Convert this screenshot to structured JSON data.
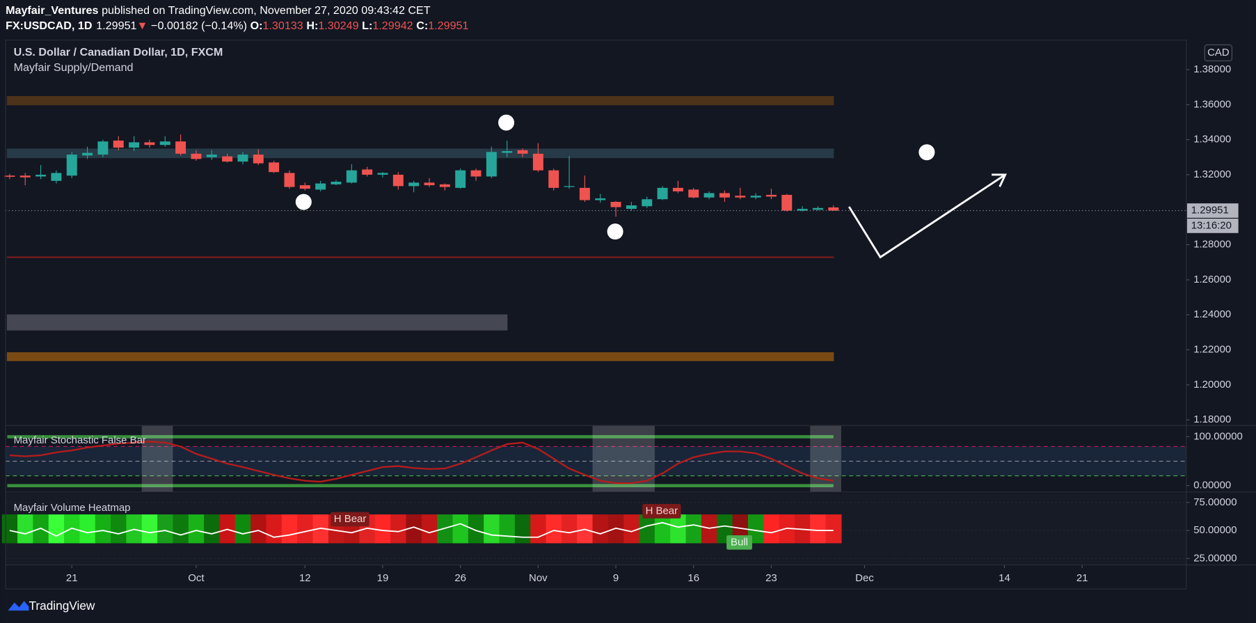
{
  "header": {
    "author": "Mayfair_Ventures",
    "published": "published on TradingView.com, November 27, 2020 09:43:42 CET",
    "symbol": "FX:USDCAD, 1D",
    "last": "1.29951",
    "arrow": "▼",
    "change": "−0.00182 (−0.14%)",
    "ohlc": [
      {
        "label": "O:",
        "value": "1.30133"
      },
      {
        "label": "H:",
        "value": "1.30249"
      },
      {
        "label": "L:",
        "value": "1.29942"
      },
      {
        "label": "C:",
        "value": "1.29951"
      }
    ]
  },
  "footer": {
    "brand": "TradingView"
  },
  "chart_data": [
    {
      "type": "candlestick",
      "title": "U.S. Dollar / Canadian Dollar, 1D, FXCM",
      "subtitle": "Mayfair Supply/Demand",
      "currency": "CAD",
      "open": [
        1.3195,
        1.3195,
        1.319,
        1.3165,
        1.3195,
        1.331,
        1.3315,
        1.3395,
        1.3355,
        1.3385,
        1.337,
        1.339,
        1.332,
        1.33,
        1.3305,
        1.3275,
        1.3315,
        1.327,
        1.321,
        1.314,
        1.3115,
        1.3145,
        1.3155,
        1.323,
        1.32,
        1.32,
        1.3135,
        1.3155,
        1.3145,
        1.3125,
        1.3225,
        1.319,
        1.3325,
        1.334,
        1.332,
        1.3225,
        1.313,
        1.3125,
        1.3055,
        1.3045,
        1.3005,
        1.302,
        1.306,
        1.3125,
        1.3115,
        1.307,
        1.3095,
        1.308,
        1.307,
        1.3085,
        1.3085,
        1.2995,
        1.3,
        1.30133
      ],
      "high": [
        1.3205,
        1.321,
        1.3255,
        1.3225,
        1.333,
        1.336,
        1.34,
        1.342,
        1.342,
        1.34,
        1.342,
        1.343,
        1.334,
        1.334,
        1.332,
        1.333,
        1.3345,
        1.328,
        1.3225,
        1.3155,
        1.3165,
        1.317,
        1.326,
        1.3245,
        1.3215,
        1.3215,
        1.3165,
        1.318,
        1.315,
        1.3235,
        1.3235,
        1.336,
        1.3395,
        1.335,
        1.338,
        1.3235,
        1.3305,
        1.3195,
        1.309,
        1.305,
        1.3045,
        1.3075,
        1.3135,
        1.3165,
        1.3125,
        1.3105,
        1.311,
        1.3125,
        1.3095,
        1.312,
        1.309,
        1.302,
        1.302,
        1.30249
      ],
      "low": [
        1.3175,
        1.314,
        1.3175,
        1.315,
        1.318,
        1.329,
        1.33,
        1.334,
        1.3335,
        1.3355,
        1.336,
        1.331,
        1.328,
        1.3285,
        1.327,
        1.326,
        1.3255,
        1.321,
        1.312,
        1.311,
        1.3105,
        1.314,
        1.315,
        1.319,
        1.3185,
        1.3115,
        1.31,
        1.313,
        1.311,
        1.312,
        1.3165,
        1.318,
        1.33,
        1.33,
        1.3215,
        1.311,
        1.312,
        1.3045,
        1.304,
        1.296,
        1.2995,
        1.301,
        1.3055,
        1.3095,
        1.3065,
        1.306,
        1.3045,
        1.306,
        1.306,
        1.306,
        1.299,
        1.299,
        1.2995,
        1.29942
      ],
      "close": [
        1.3188,
        1.3185,
        1.32,
        1.321,
        1.3315,
        1.3325,
        1.339,
        1.3355,
        1.3385,
        1.337,
        1.339,
        1.332,
        1.329,
        1.3315,
        1.3275,
        1.3315,
        1.3265,
        1.3215,
        1.313,
        1.312,
        1.315,
        1.316,
        1.3225,
        1.32,
        1.321,
        1.3135,
        1.3155,
        1.314,
        1.313,
        1.3225,
        1.319,
        1.333,
        1.3335,
        1.332,
        1.3225,
        1.3125,
        1.3135,
        1.3055,
        1.3065,
        1.3015,
        1.3025,
        1.306,
        1.3125,
        1.3105,
        1.307,
        1.3095,
        1.307,
        1.307,
        1.308,
        1.3075,
        1.2995,
        1.3005,
        1.301,
        1.29951
      ],
      "up_color": "#26a69a",
      "down_color": "#ef5350",
      "xlim": [
        -0.26,
        75.7
      ],
      "xticks": [
        {
          "value": 4,
          "label": "21"
        },
        {
          "value": 12,
          "label": "Oct"
        },
        {
          "value": 19,
          "label": "12"
        },
        {
          "value": 24,
          "label": "19"
        },
        {
          "value": 29,
          "label": "26"
        },
        {
          "value": 34,
          "label": "Nov"
        },
        {
          "value": 39,
          "label": "9"
        },
        {
          "value": 44,
          "label": "16"
        },
        {
          "value": 49,
          "label": "23"
        },
        {
          "value": 55,
          "label": "Dec"
        },
        {
          "value": 64,
          "label": "14"
        },
        {
          "value": 69,
          "label": "21"
        }
      ],
      "ylim": [
        1.1768,
        1.3969
      ],
      "yticks": [
        {
          "value": 1.38,
          "label": "1.38000"
        },
        {
          "value": 1.36,
          "label": "1.36000"
        },
        {
          "value": 1.34,
          "label": "1.34000"
        },
        {
          "value": 1.32,
          "label": "1.32000"
        },
        {
          "value": 1.3,
          "label": "1.30000"
        },
        {
          "value": 1.28,
          "label": "1.28000"
        },
        {
          "value": 1.26,
          "label": "1.26000"
        },
        {
          "value": 1.24,
          "label": "1.24000"
        },
        {
          "value": 1.22,
          "label": "1.22000"
        },
        {
          "value": 1.2,
          "label": "1.20000"
        },
        {
          "value": 1.18,
          "label": "1.18000"
        }
      ],
      "last_price": 1.29951,
      "countdown": "13:16:20",
      "zones": [
        {
          "low": 1.3599,
          "high": 1.3647,
          "from": 0,
          "to": 53,
          "color": "#4d3319"
        },
        {
          "low": 1.3297,
          "high": 1.3347,
          "from": 0,
          "to": 53,
          "color": "#263a47"
        },
        {
          "low": 1.2729,
          "high": 1.2731,
          "from": 0,
          "to": 53,
          "color": "#7a1c1c"
        },
        {
          "low": 1.2313,
          "high": 1.24,
          "from": 0,
          "to": 32,
          "color": "#454852"
        },
        {
          "low": 1.2138,
          "high": 1.2184,
          "from": 0,
          "to": 53,
          "color": "#7a4a14"
        }
      ]
    },
    {
      "type": "line",
      "title": "Mayfair Stochastic False Bar",
      "series": [
        {
          "color": "#b71c1c",
          "values": [
            62,
            60,
            62,
            68,
            72,
            78,
            82,
            86,
            88,
            90,
            88,
            80,
            65,
            55,
            45,
            38,
            30,
            22,
            15,
            10,
            8,
            14,
            22,
            30,
            38,
            40,
            36,
            34,
            35,
            45,
            58,
            72,
            85,
            88,
            75,
            55,
            35,
            22,
            10,
            5,
            5,
            10,
            25,
            45,
            58,
            65,
            70,
            70,
            66,
            55,
            40,
            25,
            15,
            10
          ]
        }
      ],
      "ylim": [
        -13,
        123
      ],
      "yticks": [
        {
          "value": 100,
          "label": "100.00000"
        },
        {
          "value": 0,
          "label": "0.00000"
        }
      ],
      "levels": [
        {
          "value": 80,
          "color": "#c2185b"
        },
        {
          "value": 50,
          "color": "#8a8e99"
        },
        {
          "value": 20,
          "color": "#4caf50"
        }
      ],
      "false_bars": [
        [
          9,
          10
        ],
        [
          38,
          41
        ],
        [
          52,
          53
        ]
      ]
    },
    {
      "type": "heatmap",
      "title": "Mayfair Volume Heatmap",
      "series": [
        {
          "color": "#ffffff",
          "values": [
            50,
            47,
            52,
            45,
            52,
            48,
            50,
            47,
            51,
            48,
            50,
            46,
            50,
            47,
            51,
            47,
            50,
            44,
            46,
            49,
            52,
            50,
            48,
            52,
            50,
            49,
            53,
            48,
            52,
            56,
            50,
            46,
            45,
            44,
            44,
            50,
            48,
            51,
            47,
            52,
            49,
            54,
            57,
            53,
            55,
            52,
            54,
            52,
            50,
            48,
            52,
            51,
            50,
            50
          ]
        }
      ],
      "column_colors": [
        "#0b6b0b",
        "#2ee02e",
        "#13a313",
        "#39ff39",
        "#1fd31f",
        "#2bf02b",
        "#16b016",
        "#0f8a0f",
        "#22c722",
        "#37f737",
        "#1a9e1a",
        "#0e7a0e",
        "#19b319",
        "#0c6c0c",
        "#c81414",
        "#0e8a0e",
        "#b01212",
        "#d91a1a",
        "#ff2a2a",
        "#e52020",
        "#ff3030",
        "#c41818",
        "#b81515",
        "#e02424",
        "#ff2626",
        "#d41c1c",
        "#9a1010",
        "#c01616",
        "#138f13",
        "#1fc41f",
        "#0d7d0d",
        "#2ad92a",
        "#17a817",
        "#0b6a0b",
        "#d61a1a",
        "#ff2c2c",
        "#e52222",
        "#ff3535",
        "#b41414",
        "#a21212",
        "#c81818",
        "#0f800f",
        "#1cc01c",
        "#2ee32e",
        "#17a317",
        "#b51515",
        "#0c720c",
        "#8f1010",
        "#139413",
        "#ff2424",
        "#e61e1e",
        "#d01a1a",
        "#ff2e2e",
        "#e42020"
      ],
      "ylim": [
        19.3,
        82.9
      ],
      "yticks": [
        {
          "value": 75,
          "label": "75.00000"
        },
        {
          "value": 50,
          "label": "50.00000"
        },
        {
          "value": 25,
          "label": "25.00000"
        }
      ],
      "annotations": [
        "H Bear",
        "H Bear",
        "Bull"
      ]
    }
  ]
}
